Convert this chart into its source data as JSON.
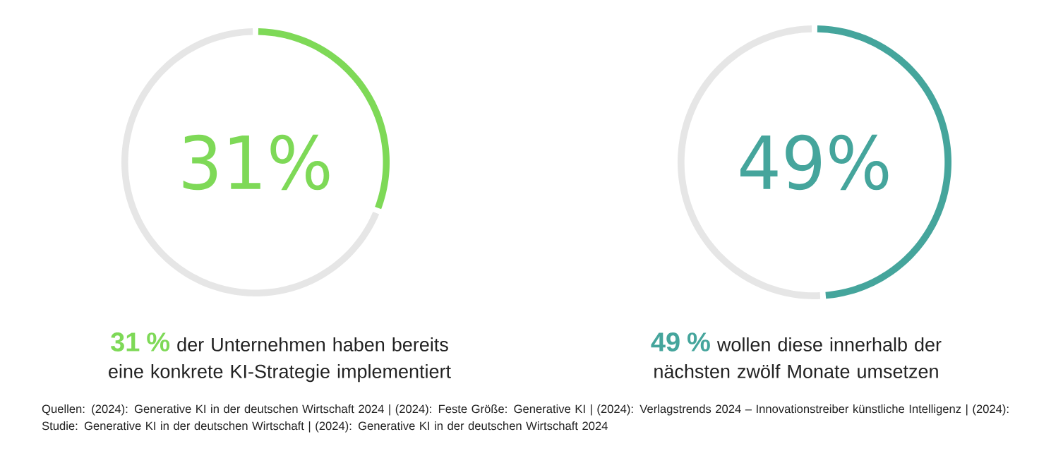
{
  "chart_data": [
    {
      "type": "donut",
      "categories": [
        null,
        null
      ],
      "values": [
        31,
        69
      ],
      "colors": [
        "#7ed957",
        "#e6e6e6"
      ],
      "value_labels": [
        "31%",
        null
      ],
      "title": "**31 %** der Unternehmen haben bereits eine konkrete KI-Strategie implementiert"
    },
    {
      "type": "donut",
      "categories": [
        null,
        null
      ],
      "values": [
        49,
        51
      ],
      "colors": [
        "#45a59c",
        "#e6e6e6"
      ],
      "value_labels": [
        "49%",
        null
      ],
      "title": "**49 %** wollen diese innerhalb der nächsten zwölf Monate umsetzen",
      "annotations": [
        "Quellen: (2024): Generative KI in der deutschen Wirtschaft 2024 | (2024): Feste Größe: Generative KI | (2024): Verlagstrends 2024 – Innovationstreiber künstliche Intelligenz | (2024): Studie: Generative KI in der deutschen Wirtschaft | (2024): Generative KI in der deutschen Wirtschaft 2024"
      ]
    }
  ]
}
